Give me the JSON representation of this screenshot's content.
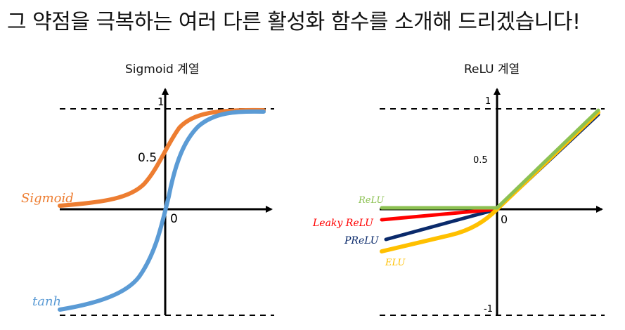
{
  "headline": "그 약점을 극복하는 여러 다른 활성화 함수를 소개해 드리겠습니다!",
  "colors": {
    "axis": "#000000",
    "sigmoid": "#ED7D31",
    "tanh": "#5B9BD5",
    "relu": "#8CC152",
    "leaky_relu": "#FF0000",
    "prelu": "#0A2A6B",
    "elu": "#FFC000"
  },
  "sigmoid_panel": {
    "title": "Sigmoid 계열",
    "tick_one": "1",
    "tick_half": "0.5",
    "origin": "0",
    "sigmoid_label": "Sigmoid",
    "tanh_label": "tanh"
  },
  "relu_panel": {
    "title": "ReLU 계열",
    "tick_one": "1",
    "tick_half": "0.5",
    "tick_neg_one": "-1",
    "origin": "0",
    "relu_label": "ReLU",
    "leaky_label": "Leaky ReLU",
    "prelu_label": "PReLU",
    "elu_label": "ELU"
  }
}
